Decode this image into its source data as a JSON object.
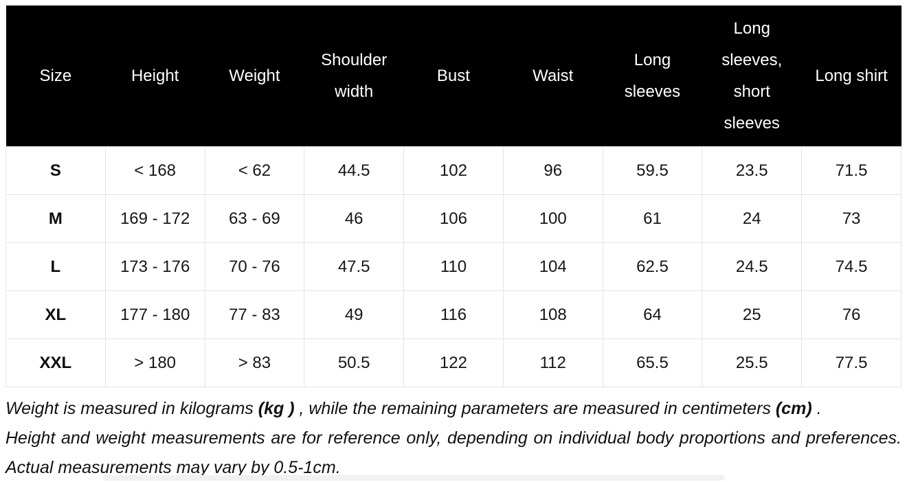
{
  "table": {
    "columns": [
      "Size",
      "Height",
      "Weight",
      "Shoulder width",
      "Bust",
      "Waist",
      "Long sleeves",
      "Long sleeves, short sleeves",
      "Long shirt"
    ],
    "rows": [
      [
        "S",
        "< 168",
        "< 62",
        "44.5",
        "102",
        "96",
        "59.5",
        "23.5",
        "71.5"
      ],
      [
        "M",
        "169 - 172",
        "63 - 69",
        "46",
        "106",
        "100",
        "61",
        "24",
        "73"
      ],
      [
        "L",
        "173 - 176",
        "70 - 76",
        "47.5",
        "110",
        "104",
        "62.5",
        "24.5",
        "74.5"
      ],
      [
        "XL",
        "177 - 180",
        "77 - 83",
        "49",
        "116",
        "108",
        "64",
        "25",
        "76"
      ],
      [
        "XXL",
        "> 180",
        "> 83",
        "50.5",
        "122",
        "112",
        "65.5",
        "25.5",
        "77.5"
      ]
    ]
  },
  "notes": {
    "line1_part1": "Weight is measured in kilograms ",
    "line1_bold1": "(kg )",
    "line1_part2": " , while the remaining parameters are measured in centimeters ",
    "line1_bold2": "(cm)",
    "line1_part3": " .",
    "line2": "Height and weight measurements are for reference only, depending on individual body proportions and preferences. Actual measurements may vary by 0.5-1cm."
  },
  "colors": {
    "header_bg": "#000000",
    "header_text": "#ffffff",
    "body_text": "#161616",
    "cell_border": "#e4e4e4",
    "scrollbar": "#f1f1f1"
  }
}
